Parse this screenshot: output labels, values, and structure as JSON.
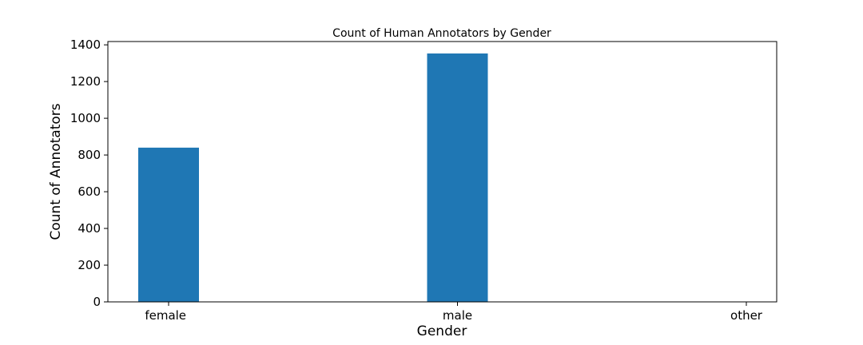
{
  "chart_data": {
    "type": "bar",
    "title": "Count of Human Annotators by Gender",
    "xlabel": "Gender",
    "ylabel": "Count of Annotators",
    "categories": [
      "female",
      "male",
      "other"
    ],
    "values": [
      840,
      1353,
      0
    ],
    "ylim": [
      0,
      1418
    ],
    "yticks": [
      0,
      200,
      400,
      600,
      800,
      1000,
      1200,
      1400
    ],
    "bar_color": "#1f77b4",
    "grid": false,
    "legend": "none"
  }
}
